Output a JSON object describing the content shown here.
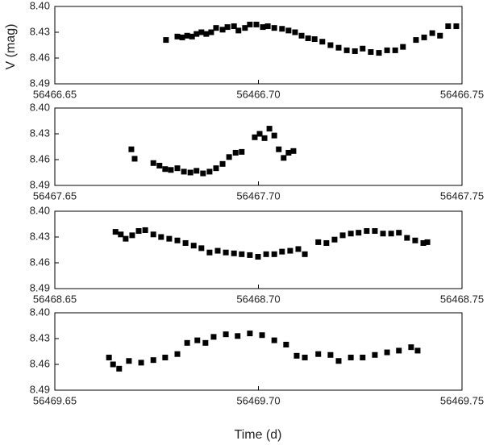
{
  "chart_data": [
    {
      "type": "scatter",
      "ylabel": "V (mag)",
      "color": "#000000",
      "y_inverted": true,
      "xlim": [
        56466.65,
        56466.75
      ],
      "xticks": [
        56466.65,
        {
          "value": 56466.7,
          "label": "56466.70"
        },
        56466.75
      ],
      "ylim": [
        8.4,
        8.49
      ],
      "yticks": [
        {
          "value": 8.4,
          "label": "8.40"
        },
        8.43,
        8.46,
        8.49
      ],
      "x": [
        56466.6773,
        56466.6801,
        56466.6813,
        56466.6825,
        56466.6837,
        56466.6848,
        56466.686,
        56466.6872,
        56466.6884,
        56466.6896,
        56466.6912,
        56466.6924,
        56466.694,
        56466.6951,
        56466.6967,
        56466.6979,
        56466.6995,
        56466.7011,
        56466.7023,
        56466.7039,
        56466.7058,
        56466.7074,
        56466.709,
        56466.7106,
        56466.7122,
        56466.7138,
        56466.7157,
        56466.7177,
        56466.7197,
        56466.7217,
        56466.7237,
        56466.7256,
        56466.7276,
        56466.7296,
        56466.7316,
        56466.7336,
        56466.7355,
        56466.7387,
        56466.7407,
        56466.7427,
        56466.7446,
        56466.7466,
        56466.7486
      ],
      "values": [
        8.439,
        8.435,
        8.436,
        8.434,
        8.435,
        8.432,
        8.43,
        8.432,
        8.43,
        8.425,
        8.427,
        8.424,
        8.423,
        8.428,
        8.425,
        8.421,
        8.421,
        8.424,
        8.423,
        8.425,
        8.426,
        8.428,
        8.43,
        8.434,
        8.437,
        8.438,
        8.441,
        8.445,
        8.448,
        8.451,
        8.452,
        8.449,
        8.453,
        8.454,
        8.451,
        8.451,
        8.447,
        8.439,
        8.436,
        8.431,
        8.434,
        8.423,
        8.423
      ]
    },
    {
      "type": "scatter",
      "color": "#000000",
      "y_inverted": true,
      "xlim": [
        56467.65,
        56467.75
      ],
      "xticks": [
        56467.65,
        {
          "value": 56467.7,
          "label": "56467.70"
        },
        56467.75
      ],
      "ylim": [
        8.4,
        8.49
      ],
      "yticks": [
        {
          "value": 8.4,
          "label": "8.40"
        },
        8.43,
        8.46,
        8.49
      ],
      "x": [
        56467.6688,
        56467.6696,
        56467.6742,
        56467.6757,
        56467.6771,
        56467.6785,
        56467.6801,
        56467.6817,
        56467.6833,
        56467.6848,
        56467.6864,
        56467.688,
        56467.6896,
        56467.6912,
        56467.6928,
        56467.6944,
        56467.6959,
        56467.6991,
        56467.7003,
        56467.7015,
        56467.7027,
        56467.7039,
        56467.705,
        56467.7062,
        56467.7074,
        56467.7086
      ],
      "values": [
        8.448,
        8.459,
        8.464,
        8.467,
        8.471,
        8.472,
        8.47,
        8.474,
        8.475,
        8.473,
        8.476,
        8.474,
        8.47,
        8.465,
        8.457,
        8.452,
        8.451,
        8.434,
        8.43,
        8.435,
        8.424,
        8.432,
        8.448,
        8.458,
        8.452,
        8.45
      ]
    },
    {
      "type": "scatter",
      "color": "#000000",
      "y_inverted": true,
      "xlim": [
        56468.65,
        56468.75
      ],
      "xticks": [
        56468.65,
        {
          "value": 56468.7,
          "label": "56468.70"
        },
        56468.75
      ],
      "ylim": [
        8.4,
        8.49
      ],
      "yticks": [
        {
          "value": 8.4,
          "label": "8.40"
        },
        8.43,
        8.46,
        8.49
      ],
      "x": [
        56468.6649,
        56468.6662,
        56468.6674,
        56468.669,
        56468.6706,
        56468.6722,
        56468.6742,
        56468.6761,
        56468.6781,
        56468.6801,
        56468.6821,
        56468.6841,
        56468.686,
        56468.688,
        56468.69,
        56468.692,
        56468.694,
        56468.6959,
        56468.6979,
        56468.6999,
        56468.7019,
        56468.7039,
        56468.7058,
        56468.7078,
        56468.7098,
        56468.7114,
        56468.7147,
        56468.7167,
        56468.7187,
        56468.7207,
        56468.7227,
        56468.7246,
        56468.7266,
        56468.7286,
        56468.7306,
        56468.7326,
        56468.7345,
        56468.7365,
        56468.7385,
        56468.7405,
        56468.7415
      ],
      "values": [
        8.424,
        8.427,
        8.432,
        8.428,
        8.423,
        8.422,
        8.427,
        8.43,
        8.432,
        8.434,
        8.437,
        8.44,
        8.443,
        8.448,
        8.446,
        8.448,
        8.449,
        8.45,
        8.451,
        8.453,
        8.45,
        8.45,
        8.447,
        8.446,
        8.444,
        8.45,
        8.436,
        8.437,
        8.433,
        8.428,
        8.426,
        8.425,
        8.423,
        8.423,
        8.426,
        8.426,
        8.425,
        8.431,
        8.434,
        8.437,
        8.436
      ]
    },
    {
      "type": "scatter",
      "xlabel": "Time (d)",
      "color": "#000000",
      "y_inverted": true,
      "xlim": [
        56469.65,
        56469.75
      ],
      "xticks": [
        56469.65,
        {
          "value": 56469.7,
          "label": "56469.70"
        },
        56469.75
      ],
      "ylim": [
        8.4,
        8.49
      ],
      "yticks": [
        {
          "value": 8.4,
          "label": "8.40"
        },
        8.43,
        8.46,
        8.49
      ],
      "x": [
        56469.6633,
        56469.6643,
        56469.6658,
        56469.6682,
        56469.6712,
        56469.6742,
        56469.6771,
        56469.6801,
        56469.6825,
        56469.685,
        56469.687,
        56469.689,
        56469.692,
        56469.6949,
        56469.6979,
        56469.7009,
        56469.7039,
        56469.7068,
        56469.7094,
        56469.7114,
        56469.7147,
        56469.7177,
        56469.7197,
        56469.7227,
        56469.7256,
        56469.7286,
        56469.7316,
        56469.7345,
        56469.7375,
        56469.7391
      ],
      "values": [
        8.452,
        8.46,
        8.465,
        8.456,
        8.458,
        8.455,
        8.452,
        8.448,
        8.435,
        8.432,
        8.435,
        8.428,
        8.425,
        8.427,
        8.424,
        8.426,
        8.432,
        8.437,
        8.45,
        8.452,
        8.448,
        8.449,
        8.456,
        8.452,
        8.452,
        8.449,
        8.446,
        8.444,
        8.44,
        8.444
      ]
    }
  ]
}
